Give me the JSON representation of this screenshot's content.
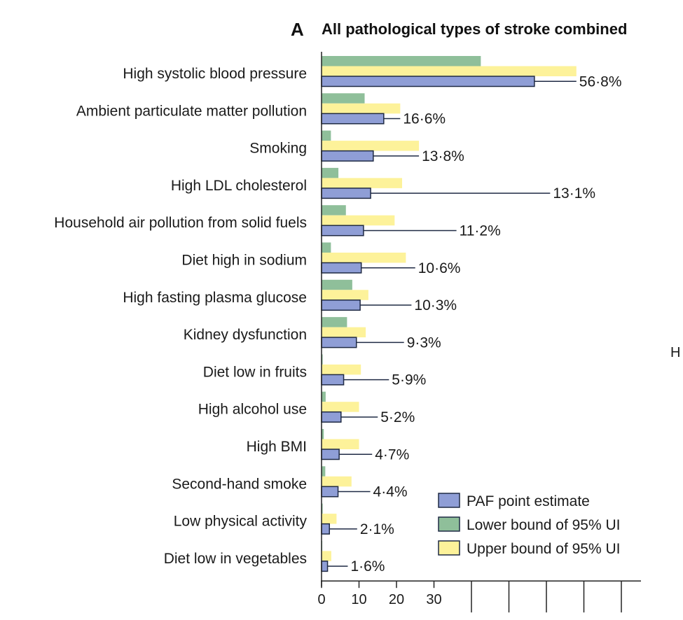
{
  "panel_letter": "A",
  "edge_text": "H",
  "colors": {
    "paf": "#8f9ed6",
    "lower": "#8fbf9a",
    "upper": "#fdf29a",
    "outline": "#1f2a44",
    "axis": "#222222"
  },
  "chart_data": {
    "type": "bar",
    "orientation": "horizontal",
    "title": "All pathological types of stroke combined",
    "categories": [
      "High systolic blood pressure",
      "Ambient particulate matter pollution",
      "Smoking",
      "High LDL cholesterol",
      "Household air pollution from solid fuels",
      "Diet high in sodium",
      "High fasting plasma glucose",
      "Kidney dysfunction",
      "Diet low in fruits",
      "High alcohol use",
      "High BMI",
      "Second-hand smoke",
      "Low physical activity",
      "Diet low in vegetables"
    ],
    "series": [
      {
        "name": "Lower bound of 95% UI",
        "values": [
          42.5,
          11.5,
          2.5,
          4.5,
          6.5,
          2.5,
          8.2,
          6.8,
          0.3,
          1.1,
          0.6,
          1.0,
          0.3,
          0.2
        ]
      },
      {
        "name": "Upper bound of 95% UI",
        "values": [
          68.0,
          21.0,
          26.0,
          21.5,
          19.5,
          22.5,
          12.5,
          11.8,
          10.5,
          10.0,
          10.0,
          8.0,
          4.0,
          2.6
        ]
      },
      {
        "name": "PAF point estimate",
        "values": [
          56.8,
          16.6,
          13.8,
          13.1,
          11.2,
          10.6,
          10.3,
          9.3,
          5.9,
          5.2,
          4.7,
          4.4,
          2.1,
          1.6
        ]
      }
    ],
    "value_labels": [
      "56·8%",
      "16·6%",
      "13·8%",
      "13·1%",
      "11·2%",
      "10·6%",
      "10·3%",
      "9·3%",
      "5·9%",
      "5·2%",
      "4·7%",
      "4·4%",
      "2·1%",
      "1·6%"
    ],
    "leader_end": [
      68.0,
      21.0,
      26.0,
      61.0,
      36.0,
      25.0,
      24.0,
      22.0,
      18.0,
      15.0,
      13.5,
      13.0,
      9.5,
      7.0
    ],
    "x_ticks": [
      0,
      10,
      20,
      30
    ],
    "x_tick_labels": [
      "0",
      "10",
      "20",
      "30"
    ],
    "xlim": [
      0,
      85
    ],
    "legend": {
      "position": "bottom-right",
      "items": [
        "PAF point estimate",
        "Lower bound of 95% UI",
        "Upper bound of 95% UI"
      ]
    }
  }
}
